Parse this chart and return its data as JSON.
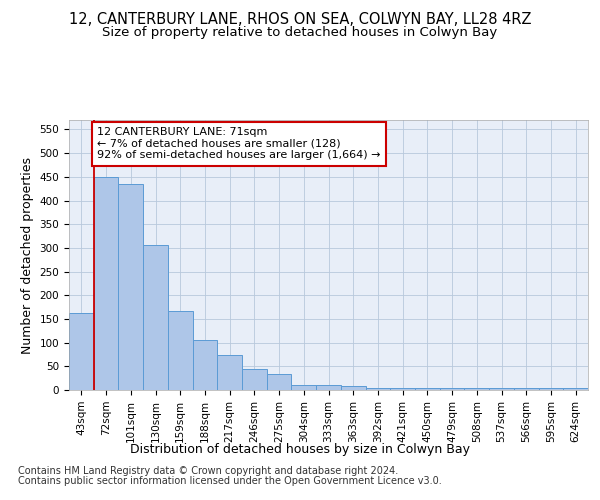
{
  "title_line1": "12, CANTERBURY LANE, RHOS ON SEA, COLWYN BAY, LL28 4RZ",
  "title_line2": "Size of property relative to detached houses in Colwyn Bay",
  "xlabel": "Distribution of detached houses by size in Colwyn Bay",
  "ylabel": "Number of detached properties",
  "categories": [
    "43sqm",
    "72sqm",
    "101sqm",
    "130sqm",
    "159sqm",
    "188sqm",
    "217sqm",
    "246sqm",
    "275sqm",
    "304sqm",
    "333sqm",
    "363sqm",
    "392sqm",
    "421sqm",
    "450sqm",
    "479sqm",
    "508sqm",
    "537sqm",
    "566sqm",
    "595sqm",
    "624sqm"
  ],
  "values": [
    163,
    450,
    435,
    307,
    167,
    106,
    74,
    45,
    33,
    10,
    10,
    8,
    5,
    5,
    4,
    4,
    4,
    4,
    4,
    4,
    5
  ],
  "bar_color": "#aec6e8",
  "bar_edge_color": "#5b9bd5",
  "vline_x_index": 1,
  "vline_color": "#cc0000",
  "annotation_text": "12 CANTERBURY LANE: 71sqm\n← 7% of detached houses are smaller (128)\n92% of semi-detached houses are larger (1,664) →",
  "annotation_box_color": "#ffffff",
  "annotation_box_edge_color": "#cc0000",
  "ylim": [
    0,
    570
  ],
  "yticks": [
    0,
    50,
    100,
    150,
    200,
    250,
    300,
    350,
    400,
    450,
    500,
    550
  ],
  "footer_line1": "Contains HM Land Registry data © Crown copyright and database right 2024.",
  "footer_line2": "Contains public sector information licensed under the Open Government Licence v3.0.",
  "background_color": "#e8eef8",
  "grid_color": "#b8c8dc",
  "title_fontsize": 10.5,
  "subtitle_fontsize": 9.5,
  "axis_label_fontsize": 9,
  "tick_fontsize": 7.5,
  "annotation_fontsize": 8,
  "footer_fontsize": 7
}
